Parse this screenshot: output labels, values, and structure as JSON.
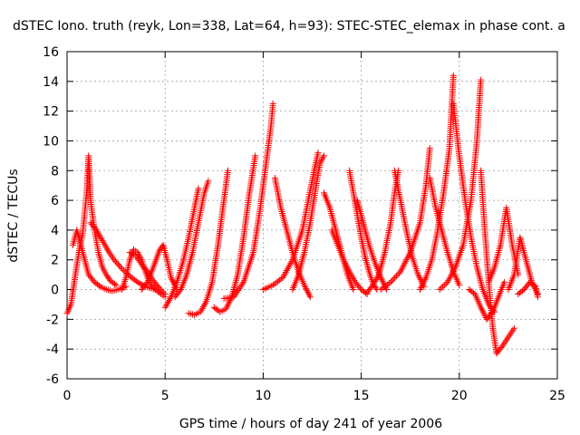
{
  "chart_data": {
    "type": "scatter",
    "title": "dSTEC Iono. truth (reyk, Lon=338, Lat=64, h=93): STEC-STEC_elemax in phase cont. a",
    "xlabel": "GPS time / hours of day 241 of year 2006",
    "ylabel": "dSTEC  / TECUs",
    "xlim": [
      0,
      25
    ],
    "ylim": [
      -6,
      16
    ],
    "xticks": [
      0,
      5,
      10,
      15,
      20,
      25
    ],
    "yticks": [
      -6,
      -4,
      -2,
      0,
      2,
      4,
      6,
      8,
      10,
      12,
      14,
      16
    ],
    "grid": true,
    "marker": "plus",
    "color": "#ff0000",
    "series": [
      {
        "x": [
          0.0,
          0.2,
          0.4,
          0.6,
          0.8,
          1.0,
          1.1,
          1.2,
          1.4,
          1.6,
          1.8,
          2.0,
          2.2,
          2.5
        ],
        "y": [
          -1.6,
          -1.0,
          0.8,
          2.5,
          3.8,
          6.5,
          9.0,
          6.0,
          4.0,
          2.5,
          1.5,
          1.0,
          0.6,
          0.3
        ]
      },
      {
        "x": [
          0.3,
          0.5,
          0.7,
          0.9,
          1.1,
          1.4,
          1.7,
          2.0,
          2.3,
          2.6,
          3.0
        ],
        "y": [
          3.0,
          4.0,
          3.0,
          2.0,
          1.0,
          0.5,
          0.2,
          0.0,
          -0.1,
          0.0,
          0.2
        ]
      },
      {
        "x": [
          1.2,
          1.5,
          1.8,
          2.1,
          2.4,
          2.8,
          3.2,
          3.6,
          4.0,
          4.5
        ],
        "y": [
          4.5,
          4.0,
          3.3,
          2.6,
          2.0,
          1.4,
          0.9,
          0.5,
          0.2,
          0.0
        ]
      },
      {
        "x": [
          2.8,
          3.0,
          3.2,
          3.4,
          3.6,
          3.8,
          4.0,
          4.2,
          4.5,
          4.8,
          5.0
        ],
        "y": [
          0.0,
          0.8,
          2.0,
          2.7,
          2.5,
          2.0,
          1.2,
          0.5,
          0.0,
          -0.3,
          -0.5
        ]
      },
      {
        "x": [
          3.2,
          3.5,
          3.8,
          4.1,
          4.4,
          4.7,
          5.0
        ],
        "y": [
          2.5,
          2.3,
          1.7,
          1.2,
          0.6,
          0.1,
          -0.3
        ]
      },
      {
        "x": [
          3.8,
          4.1,
          4.4,
          4.7,
          4.9,
          5.1,
          5.3,
          5.6
        ],
        "y": [
          0.0,
          0.5,
          1.5,
          2.6,
          3.0,
          2.0,
          0.8,
          0.0
        ]
      },
      {
        "x": [
          5.0,
          5.3,
          5.6,
          5.9,
          6.2,
          6.5,
          6.7
        ],
        "y": [
          -1.2,
          -0.5,
          0.5,
          1.8,
          3.5,
          5.5,
          6.8
        ]
      },
      {
        "x": [
          5.5,
          5.8,
          6.1,
          6.4,
          6.7,
          7.0,
          7.2
        ],
        "y": [
          -0.5,
          0.0,
          1.0,
          2.5,
          4.5,
          6.5,
          7.3
        ]
      },
      {
        "x": [
          6.2,
          6.5,
          6.8,
          7.1,
          7.4,
          7.7,
          8.0,
          8.2
        ],
        "y": [
          -1.6,
          -1.7,
          -1.5,
          -0.8,
          0.5,
          3.0,
          6.0,
          8.0
        ]
      },
      {
        "x": [
          7.5,
          7.8,
          8.1,
          8.4,
          8.7,
          9.0,
          9.3,
          9.6
        ],
        "y": [
          -1.2,
          -1.5,
          -1.3,
          -0.5,
          1.0,
          3.5,
          6.5,
          9.0
        ]
      },
      {
        "x": [
          8.0,
          8.5,
          9.0,
          9.5,
          9.8,
          10.1,
          10.4,
          10.5
        ],
        "y": [
          -0.6,
          -0.5,
          0.5,
          2.5,
          5.0,
          8.0,
          11.0,
          12.5
        ]
      },
      {
        "x": [
          10.6,
          10.9,
          11.2,
          11.5,
          11.8,
          12.1,
          12.4
        ],
        "y": [
          7.5,
          5.5,
          4.0,
          2.5,
          1.2,
          0.3,
          -0.5
        ]
      },
      {
        "x": [
          10.0,
          10.5,
          11.0,
          11.5,
          12.0,
          12.3,
          12.6,
          12.8
        ],
        "y": [
          0.0,
          0.3,
          0.8,
          2.0,
          4.0,
          6.0,
          8.0,
          9.2
        ]
      },
      {
        "x": [
          11.5,
          11.8,
          12.1,
          12.4,
          12.7,
          12.9,
          13.1
        ],
        "y": [
          0.0,
          1.0,
          2.5,
          4.5,
          7.0,
          8.5,
          9.0
        ]
      },
      {
        "x": [
          13.1,
          13.4,
          13.7,
          14.0,
          14.3,
          14.6
        ],
        "y": [
          6.5,
          5.5,
          4.0,
          2.5,
          1.0,
          0.0
        ]
      },
      {
        "x": [
          13.5,
          13.8,
          14.1,
          14.4,
          14.7,
          15.0,
          15.3
        ],
        "y": [
          4.0,
          3.0,
          2.0,
          1.2,
          0.5,
          0.0,
          -0.3
        ]
      },
      {
        "x": [
          14.4,
          14.6,
          14.8,
          15.0,
          15.2,
          15.4,
          15.6,
          15.8
        ],
        "y": [
          8.0,
          6.5,
          5.0,
          3.5,
          2.2,
          1.2,
          0.4,
          0.0
        ]
      },
      {
        "x": [
          14.8,
          15.1,
          15.4,
          15.7,
          16.0,
          16.3
        ],
        "y": [
          6.0,
          4.5,
          3.0,
          1.8,
          0.8,
          0.0
        ]
      },
      {
        "x": [
          15.3,
          15.6,
          15.9,
          16.2,
          16.5,
          16.7,
          16.9
        ],
        "y": [
          -0.2,
          0.3,
          1.0,
          2.5,
          4.5,
          6.5,
          8.0
        ]
      },
      {
        "x": [
          16.7,
          17.0,
          17.3,
          17.6,
          17.9,
          18.2
        ],
        "y": [
          8.0,
          6.0,
          4.0,
          2.2,
          1.0,
          0.2
        ]
      },
      {
        "x": [
          16.0,
          16.5,
          17.0,
          17.5,
          18.0,
          18.3,
          18.5
        ],
        "y": [
          0.0,
          0.5,
          1.2,
          2.5,
          4.5,
          7.0,
          9.5
        ]
      },
      {
        "x": [
          18.5,
          18.8,
          19.1,
          19.4,
          19.7,
          20.0
        ],
        "y": [
          7.5,
          5.5,
          4.0,
          2.5,
          1.2,
          0.3
        ]
      },
      {
        "x": [
          18.0,
          18.3,
          18.6,
          18.9,
          19.2,
          19.5,
          19.7
        ],
        "y": [
          0.0,
          0.8,
          2.0,
          4.0,
          6.5,
          9.5,
          14.4
        ]
      },
      {
        "x": [
          19.7,
          20.0,
          20.3,
          20.6,
          20.9,
          21.2,
          21.5,
          21.8
        ],
        "y": [
          12.5,
          9.0,
          6.0,
          3.5,
          1.5,
          0.0,
          -1.0,
          -1.5
        ]
      },
      {
        "x": [
          19.0,
          19.4,
          19.8,
          20.2,
          20.6,
          20.9,
          21.1
        ],
        "y": [
          0.0,
          0.5,
          1.5,
          3.0,
          6.0,
          10.0,
          14.1
        ]
      },
      {
        "x": [
          21.1,
          21.3,
          21.5,
          21.7,
          21.9,
          22.2,
          22.5,
          22.8
        ],
        "y": [
          8.0,
          4.0,
          0.5,
          -2.5,
          -4.3,
          -3.8,
          -3.2,
          -2.6
        ]
      },
      {
        "x": [
          20.5,
          20.8,
          21.1,
          21.4,
          21.7,
          22.0,
          22.3
        ],
        "y": [
          0.0,
          -0.3,
          -1.2,
          -2.0,
          -1.5,
          -0.5,
          0.5
        ]
      },
      {
        "x": [
          21.5,
          21.8,
          22.1,
          22.4,
          22.7,
          23.0
        ],
        "y": [
          0.5,
          1.5,
          3.0,
          5.5,
          3.0,
          1.0
        ]
      },
      {
        "x": [
          22.5,
          22.8,
          23.1,
          23.4,
          23.7,
          24.0
        ],
        "y": [
          0.0,
          1.0,
          3.5,
          2.0,
          0.5,
          -0.3
        ]
      },
      {
        "x": [
          23.0,
          23.3,
          23.6,
          23.9,
          24.0
        ],
        "y": [
          -0.3,
          0.0,
          0.5,
          0.2,
          -0.5
        ]
      }
    ]
  }
}
